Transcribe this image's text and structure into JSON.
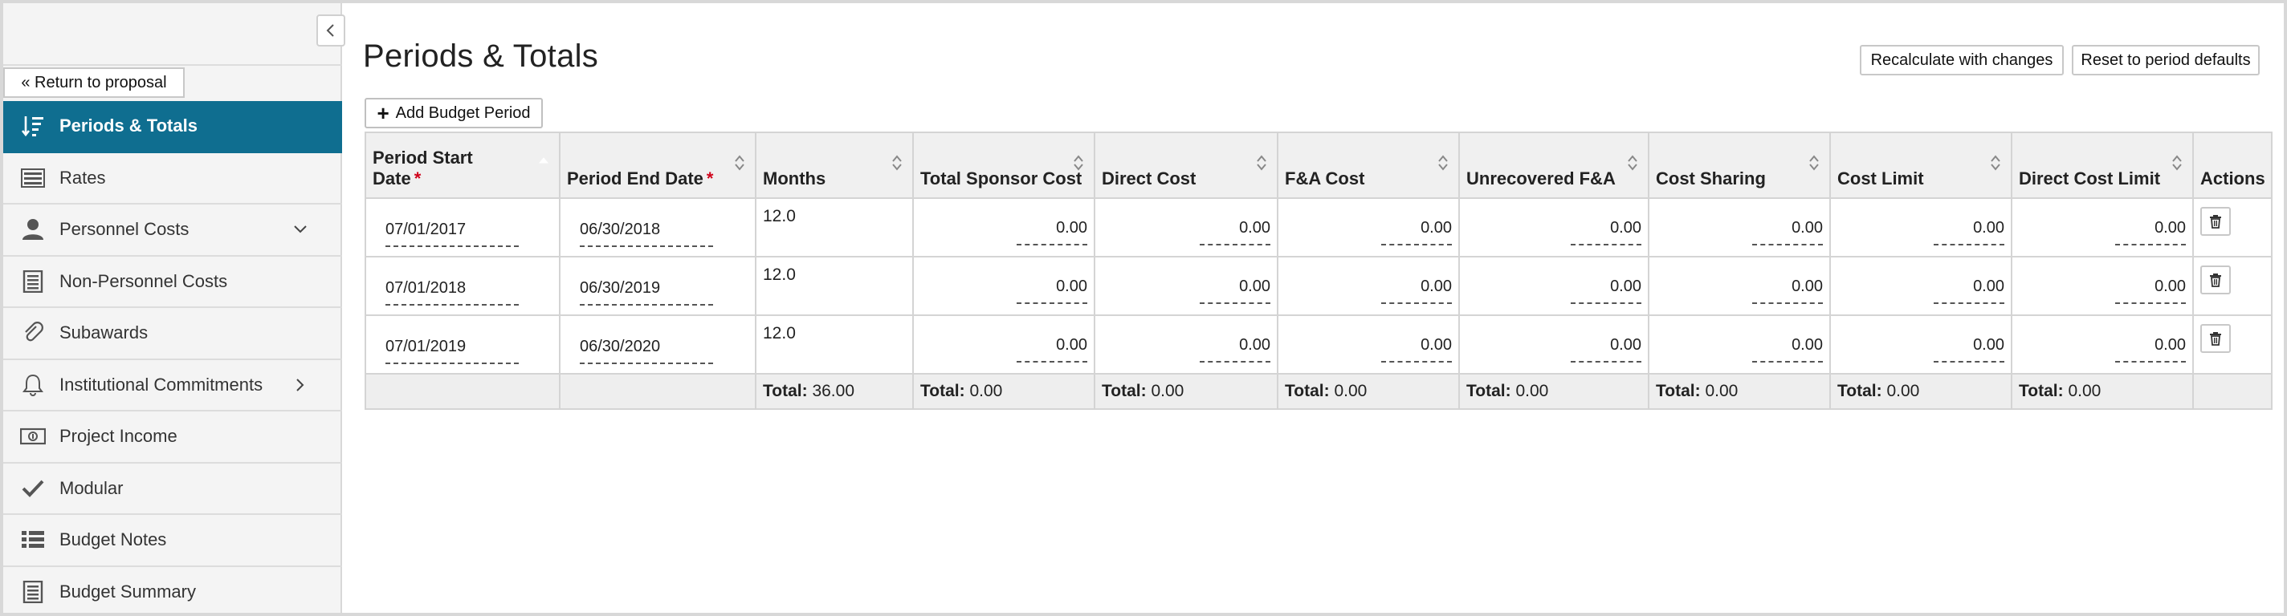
{
  "sidebar": {
    "return_label": "« Return to proposal",
    "items": [
      {
        "label": "Periods & Totals",
        "icon": "sort-icon",
        "active": true
      },
      {
        "label": "Rates",
        "icon": "rates-icon"
      },
      {
        "label": "Personnel Costs",
        "icon": "user-icon",
        "chevron": "down"
      },
      {
        "label": "Non-Personnel Costs",
        "icon": "list-doc-icon"
      },
      {
        "label": "Subawards",
        "icon": "paperclip-icon"
      },
      {
        "label": "Institutional Commitments",
        "icon": "bell-icon",
        "chevron": "right"
      },
      {
        "label": "Project Income",
        "icon": "money-icon"
      },
      {
        "label": "Modular",
        "icon": "check-icon"
      },
      {
        "label": "Budget Notes",
        "icon": "list-icon"
      },
      {
        "label": "Budget Summary",
        "icon": "summary-doc-icon"
      }
    ]
  },
  "main": {
    "title": "Periods & Totals",
    "recalculate_label": "Recalculate with changes",
    "reset_label": "Reset to period defaults",
    "add_period_label": "Add Budget Period"
  },
  "table": {
    "columns": [
      {
        "line1": "Period Start",
        "line2": "Date",
        "required": true
      },
      {
        "label": "Period End Date",
        "required": true
      },
      {
        "label": "Months"
      },
      {
        "label": "Total Sponsor Cost"
      },
      {
        "label": "Direct Cost"
      },
      {
        "label": "F&A Cost"
      },
      {
        "label": "Unrecovered F&A"
      },
      {
        "label": "Cost Sharing"
      },
      {
        "label": "Cost Limit"
      },
      {
        "label": "Direct Cost Limit"
      },
      {
        "label": "Actions"
      }
    ],
    "required_mark": "*",
    "rows": [
      {
        "start": "07/01/2017",
        "end": "06/30/2018",
        "months": "12.0",
        "total_sponsor": "0.00",
        "direct": "0.00",
        "fa": "0.00",
        "unrecovered": "0.00",
        "cost_sharing": "0.00",
        "cost_limit": "0.00",
        "direct_limit": "0.00"
      },
      {
        "start": "07/01/2018",
        "end": "06/30/2019",
        "months": "12.0",
        "total_sponsor": "0.00",
        "direct": "0.00",
        "fa": "0.00",
        "unrecovered": "0.00",
        "cost_sharing": "0.00",
        "cost_limit": "0.00",
        "direct_limit": "0.00"
      },
      {
        "start": "07/01/2019",
        "end": "06/30/2020",
        "months": "12.0",
        "total_sponsor": "0.00",
        "direct": "0.00",
        "fa": "0.00",
        "unrecovered": "0.00",
        "cost_sharing": "0.00",
        "cost_limit": "0.00",
        "direct_limit": "0.00"
      }
    ],
    "totals": {
      "label": "Total:",
      "months": "36.00",
      "total_sponsor": "0.00",
      "direct": "0.00",
      "fa": "0.00",
      "unrecovered": "0.00",
      "cost_sharing": "0.00",
      "cost_limit": "0.00",
      "direct_limit": "0.00"
    }
  },
  "colors": {
    "active_nav": "#0f6e90",
    "required": "#d0021b"
  }
}
